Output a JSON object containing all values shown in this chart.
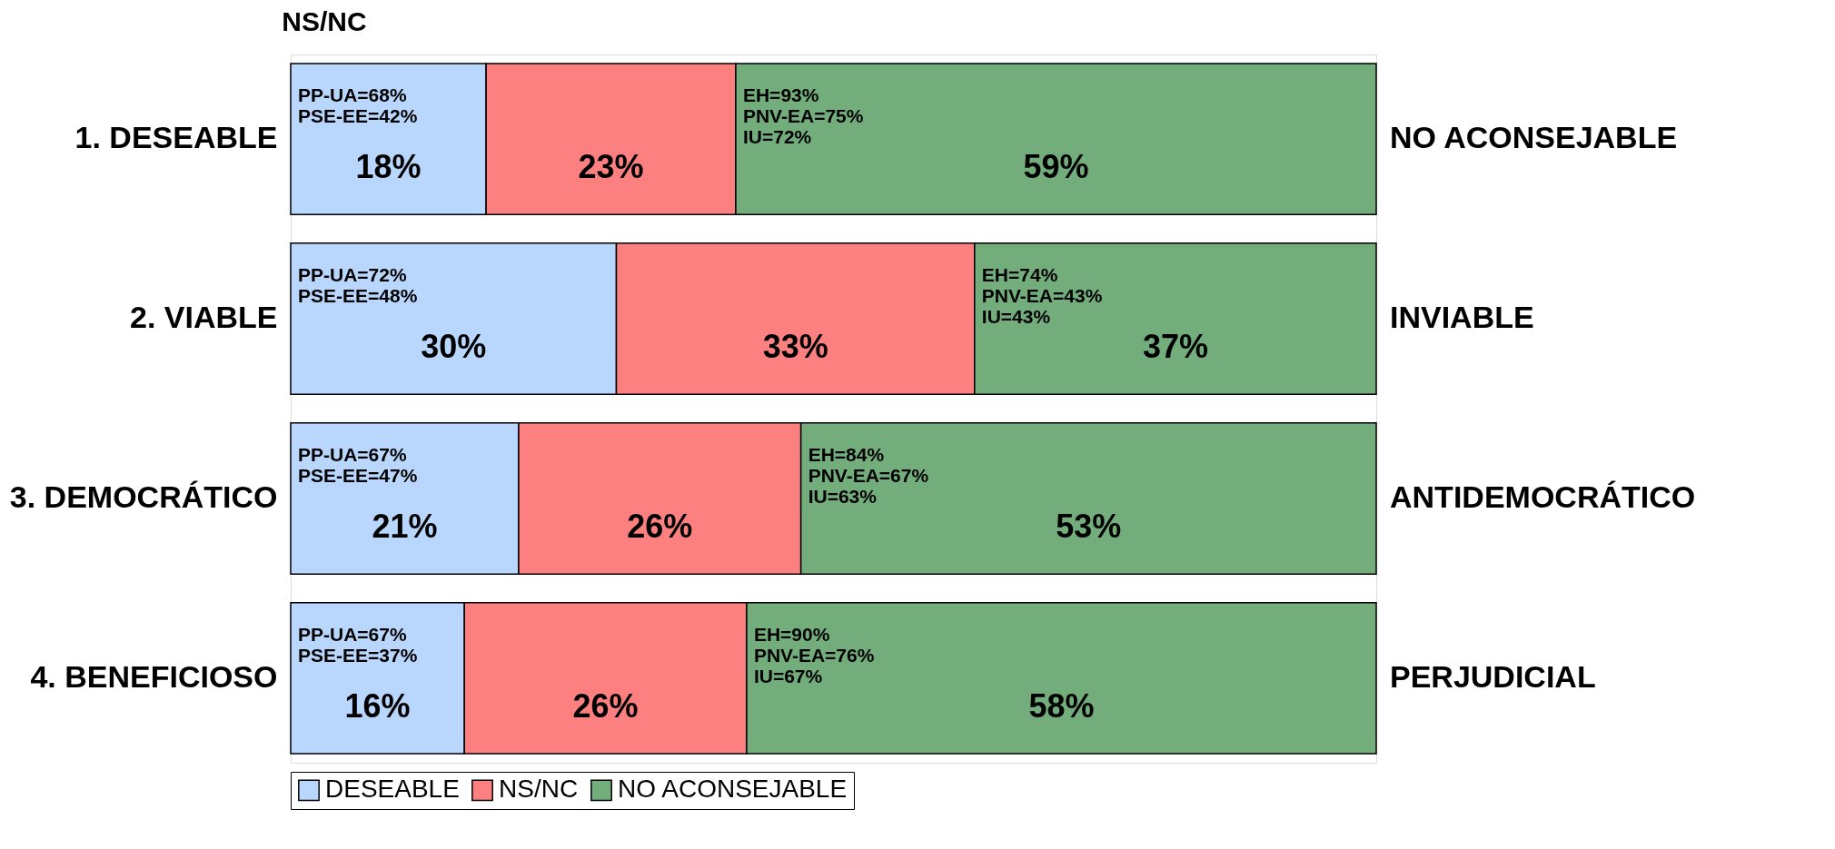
{
  "chart_data": {
    "type": "bar",
    "orientation": "horizontal",
    "stacked": true,
    "title": "NS/NC",
    "categories": [
      "1. DESEABLE",
      "2. VIABLE",
      "3. DEMOCRÁTICO",
      "4. BENEFICIOSO"
    ],
    "series": [
      {
        "name": "DESEABLE",
        "color": "#b9d7fc",
        "values": [
          18,
          30,
          21,
          16
        ],
        "value_labels": [
          "18%",
          "30%",
          "21%",
          "16%"
        ]
      },
      {
        "name": "NS/NC",
        "color": "#fd8080",
        "values": [
          23,
          33,
          26,
          26
        ],
        "value_labels": [
          "23%",
          "33%",
          "26%",
          "26%"
        ]
      },
      {
        "name": "NO ACONSEJABLE",
        "color": "#72ad7b",
        "values": [
          59,
          37,
          53,
          58
        ],
        "value_labels": [
          "59%",
          "37%",
          "53%",
          "58%"
        ]
      }
    ],
    "legend": "bottom",
    "annotations": [
      {
        "text": "PP-UA=68%\nPSE-EE=42%",
        "x": 0,
        "y": "1. DESEABLE"
      },
      {
        "text": "EH=93%\nPNV-EA=75%\nIU=72%",
        "x": 41,
        "y": "1. DESEABLE"
      },
      {
        "text": "PP-UA=72%\nPSE-EE=48%",
        "x": 0,
        "y": "2. VIABLE"
      },
      {
        "text": "EH=74%\nPNV-EA=43%\nIU=43%",
        "x": 63,
        "y": "2. VIABLE"
      },
      {
        "text": "PP-UA=67%\nPSE-EE=47%",
        "x": 0,
        "y": "3. DEMOCRÁTICO"
      },
      {
        "text": "EH=84%\nPNV-EA=67%\nIU=63%",
        "x": 47,
        "y": "3. DEMOCRÁTICO"
      },
      {
        "text": "PP-UA=67%\nPSE-EE=37%",
        "x": 0,
        "y": "4. BENEFICIOSO"
      },
      {
        "text": "EH=90%\nPNV-EA=76%\nIU=67%",
        "x": 42,
        "y": "4. BENEFICIOSO"
      },
      "NO ACONSEJABLE",
      "INVIABLE",
      "ANTIDEMOCRÁTICO",
      "PERJUDICIAL"
    ]
  }
}
